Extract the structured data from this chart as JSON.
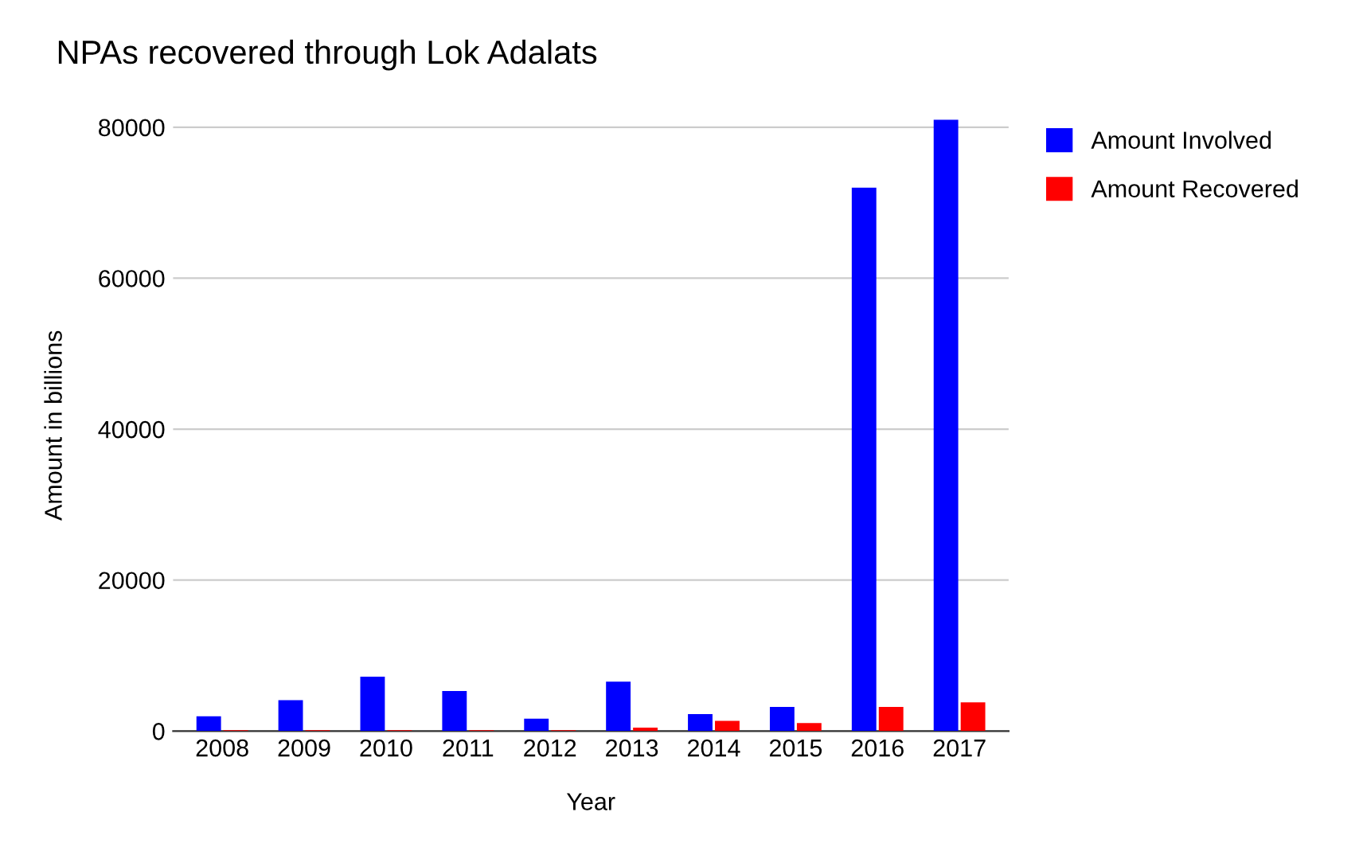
{
  "chart_data": {
    "type": "bar",
    "title": "NPAs recovered through Lok Adalats",
    "xlabel": "Year",
    "ylabel": "Amount in billions",
    "categories": [
      "2008",
      "2009",
      "2010",
      "2011",
      "2012",
      "2013",
      "2014",
      "2015",
      "2016",
      "2017"
    ],
    "series": [
      {
        "name": "Amount Involved",
        "color": "#0000ff",
        "values": [
          1950,
          4100,
          7200,
          5300,
          1650,
          6550,
          2250,
          3200,
          72000,
          81000
        ]
      },
      {
        "name": "Amount Recovered",
        "color": "#ff0000",
        "values": [
          100,
          100,
          100,
          100,
          100,
          450,
          1350,
          1050,
          3200,
          3800
        ]
      }
    ],
    "ylim": [
      0,
      81000
    ],
    "yticks": [
      0,
      20000,
      40000,
      60000,
      80000
    ],
    "grid": "y",
    "legend": "top right"
  }
}
